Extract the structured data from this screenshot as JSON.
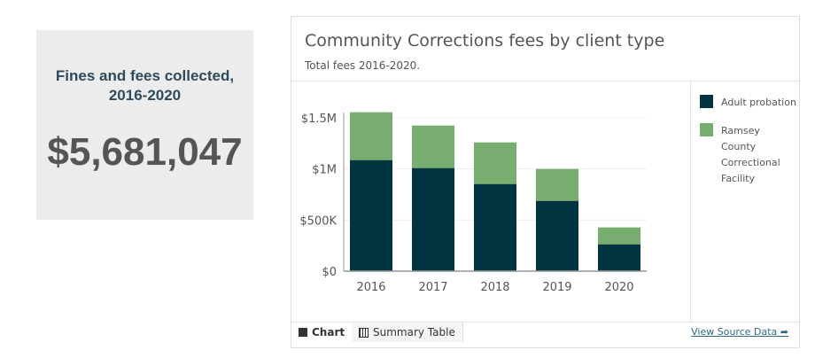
{
  "kpi": {
    "title": "Fines and fees collected, 2016-2020",
    "value": "$5,681,047"
  },
  "widget": {
    "title": "Community Corrections fees by client type",
    "subtitle": "Total fees 2016-2020.",
    "tabs": {
      "chart": "Chart",
      "table": "Summary Table"
    },
    "source_link": "View Source Data"
  },
  "chart_data": {
    "type": "bar",
    "stacked": true,
    "categories": [
      "2016",
      "2017",
      "2018",
      "2019",
      "2020"
    ],
    "series": [
      {
        "name": "Adult probation",
        "color": "#023441",
        "values": [
          1087000,
          1009000,
          853000,
          688000,
          263000
        ]
      },
      {
        "name": "Ramsey County Correctional Facility",
        "color": "#77ad6e",
        "values": [
          468000,
          416000,
          407000,
          312000,
          165000
        ]
      }
    ],
    "yticks": [
      {
        "v": 0,
        "label": "$0"
      },
      {
        "v": 500000,
        "label": "$500K"
      },
      {
        "v": 1000000,
        "label": "$1M"
      },
      {
        "v": 1500000,
        "label": "$1.5M"
      }
    ],
    "ylim": [
      0,
      1500000
    ],
    "legend": "right"
  }
}
